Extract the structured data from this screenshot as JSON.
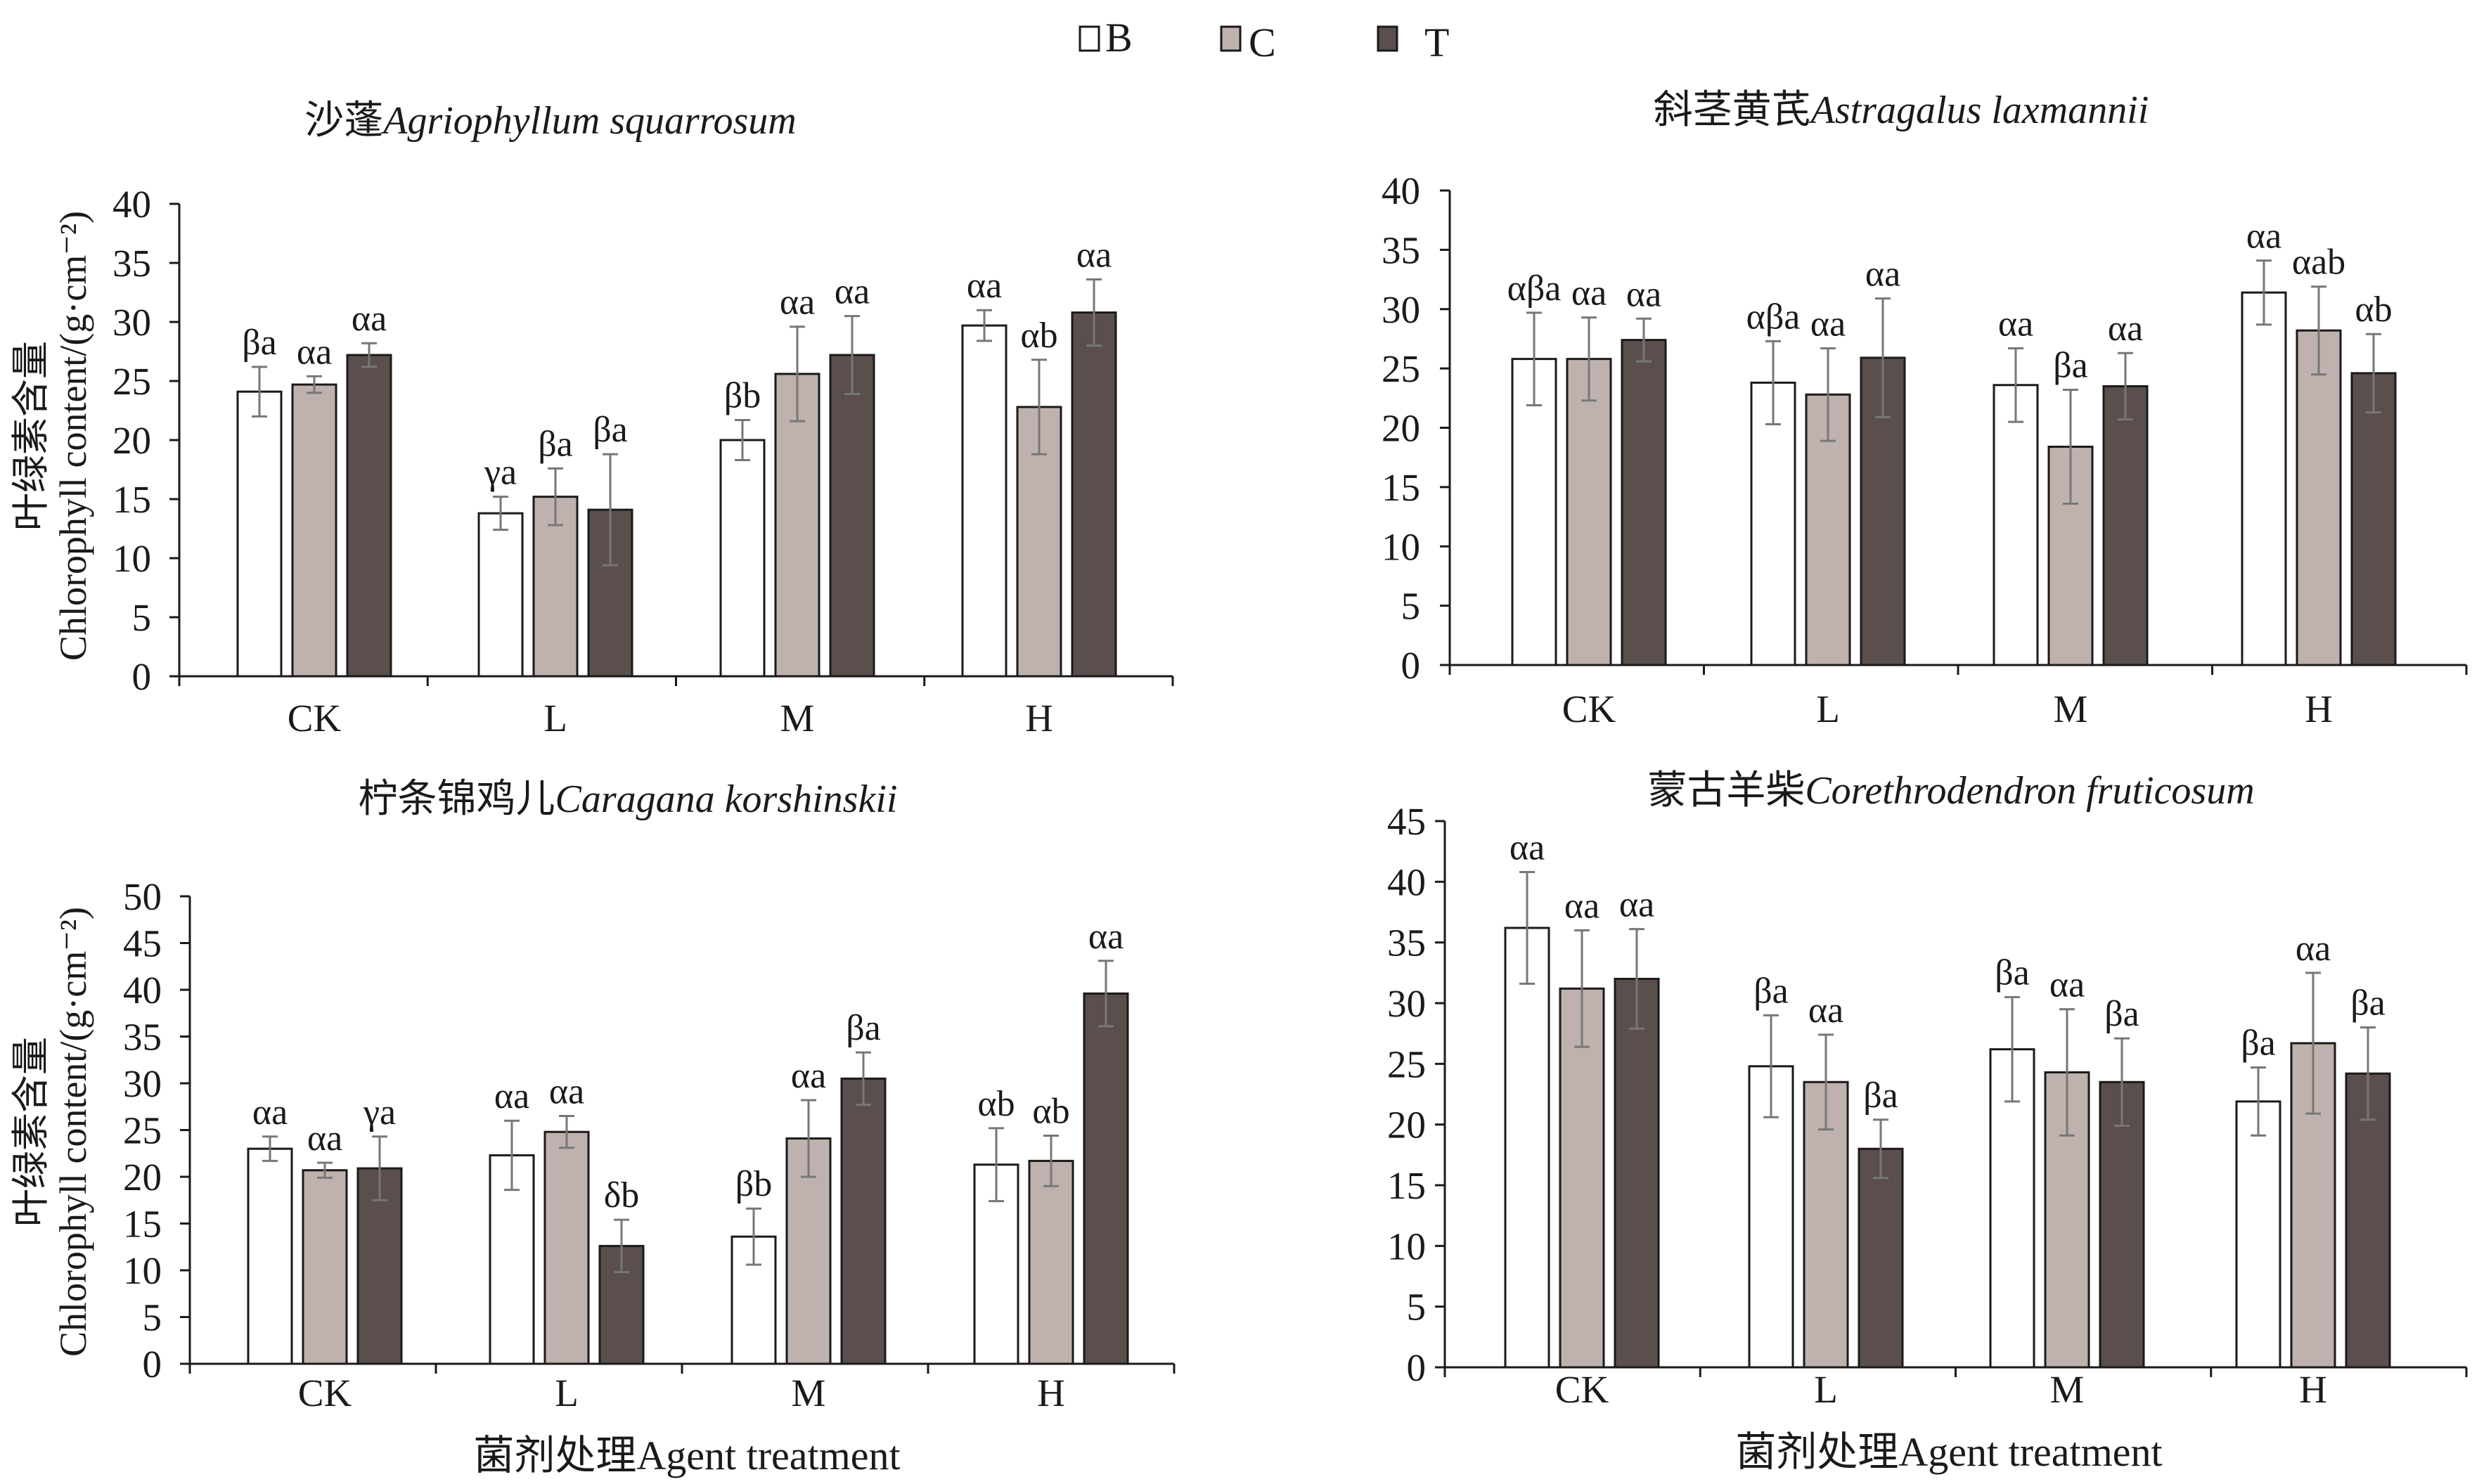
{
  "legend": [
    {
      "key": "B",
      "color": "#ffffff"
    },
    {
      "key": "C",
      "color": "#bfb2ae"
    },
    {
      "key": "T",
      "color": "#5a4f4c"
    }
  ],
  "axis_text": {
    "ylabel_cn": "叶绿素含量",
    "ylabel_en": "Chlorophyll content/(g·cm⁻²)",
    "xlabel": "菌剂处理Agent treatment"
  },
  "chart_data": [
    {
      "type": "bar",
      "title_cn": "沙蓬",
      "title_latin": "Agriophyllum squarrosum",
      "categories": [
        "CK",
        "L",
        "M",
        "H"
      ],
      "ylim": [
        0,
        40
      ],
      "yticks": [
        0,
        5,
        10,
        15,
        20,
        25,
        30,
        35,
        40
      ],
      "series": [
        {
          "name": "B",
          "values": [
            24.1,
            13.8,
            20.0,
            29.7
          ],
          "errors": [
            2.1,
            1.4,
            1.7,
            1.3
          ],
          "labels": [
            "βa",
            "γa",
            "βb",
            "αa"
          ]
        },
        {
          "name": "C",
          "values": [
            24.7,
            15.2,
            25.6,
            22.8
          ],
          "errors": [
            0.7,
            2.4,
            4.0,
            4.0
          ],
          "labels": [
            "αa",
            "βa",
            "αa",
            "αb"
          ]
        },
        {
          "name": "T",
          "values": [
            27.2,
            14.1,
            27.2,
            30.8
          ],
          "errors": [
            1.0,
            4.7,
            3.3,
            2.8
          ],
          "labels": [
            "αa",
            "βa",
            "αa",
            "αa"
          ]
        }
      ]
    },
    {
      "type": "bar",
      "title_cn": "斜茎黄芪",
      "title_latin": "Astragalus laxmannii",
      "categories": [
        "CK",
        "L",
        "M",
        "H"
      ],
      "ylim": [
        0,
        40
      ],
      "yticks": [
        0,
        5,
        10,
        15,
        20,
        25,
        30,
        35,
        40
      ],
      "series": [
        {
          "name": "B",
          "values": [
            25.8,
            23.8,
            23.6,
            31.4
          ],
          "errors": [
            3.9,
            3.5,
            3.1,
            2.7
          ],
          "labels": [
            "αβa",
            "αβa",
            "αa",
            "αa"
          ]
        },
        {
          "name": "C",
          "values": [
            25.8,
            22.8,
            18.4,
            28.2
          ],
          "errors": [
            3.5,
            3.9,
            4.8,
            3.7
          ],
          "labels": [
            "αa",
            "αa",
            "βa",
            "αab"
          ]
        },
        {
          "name": "T",
          "values": [
            27.4,
            25.9,
            23.5,
            24.6
          ],
          "errors": [
            1.8,
            5.0,
            2.8,
            3.3
          ],
          "labels": [
            "αa",
            "αa",
            "αa",
            "αb"
          ]
        }
      ]
    },
    {
      "type": "bar",
      "title_cn": "柠条锦鸡儿",
      "title_latin": "Caragana korshinskii",
      "categories": [
        "CK",
        "L",
        "M",
        "H"
      ],
      "ylim": [
        0,
        50
      ],
      "yticks": [
        0,
        5,
        10,
        15,
        20,
        25,
        30,
        35,
        40,
        45,
        50
      ],
      "series": [
        {
          "name": "B",
          "values": [
            23.0,
            22.3,
            13.6,
            21.3
          ],
          "errors": [
            1.3,
            3.7,
            3.0,
            3.9
          ],
          "labels": [
            "αa",
            "αa",
            "βb",
            "αb"
          ]
        },
        {
          "name": "C",
          "values": [
            20.7,
            24.8,
            24.1,
            21.7
          ],
          "errors": [
            0.8,
            1.7,
            4.1,
            2.7
          ],
          "labels": [
            "αa",
            "αa",
            "αa",
            "αb"
          ]
        },
        {
          "name": "T",
          "values": [
            20.9,
            12.6,
            30.5,
            39.6
          ],
          "errors": [
            3.4,
            2.8,
            2.8,
            3.5
          ],
          "labels": [
            "γa",
            "δb",
            "βa",
            "αa"
          ]
        }
      ]
    },
    {
      "type": "bar",
      "title_cn": "蒙古羊柴",
      "title_latin": "Corethrodendron fruticosum",
      "categories": [
        "CK",
        "L",
        "M",
        "H"
      ],
      "ylim": [
        0,
        45
      ],
      "yticks": [
        0,
        5,
        10,
        15,
        20,
        25,
        30,
        35,
        40,
        45
      ],
      "series": [
        {
          "name": "B",
          "values": [
            36.2,
            24.8,
            26.2,
            21.9
          ],
          "errors": [
            4.6,
            4.2,
            4.3,
            2.8
          ],
          "labels": [
            "αa",
            "βa",
            "βa",
            "βa"
          ]
        },
        {
          "name": "C",
          "values": [
            31.2,
            23.5,
            24.3,
            26.7
          ],
          "errors": [
            4.8,
            3.9,
            5.2,
            5.8
          ],
          "labels": [
            "αa",
            "αa",
            "αa",
            "αa"
          ]
        },
        {
          "name": "T",
          "values": [
            32.0,
            18.0,
            23.5,
            24.2
          ],
          "errors": [
            4.1,
            2.4,
            3.6,
            3.8
          ],
          "labels": [
            "αa",
            "βa",
            "βa",
            "βa"
          ]
        }
      ]
    }
  ]
}
